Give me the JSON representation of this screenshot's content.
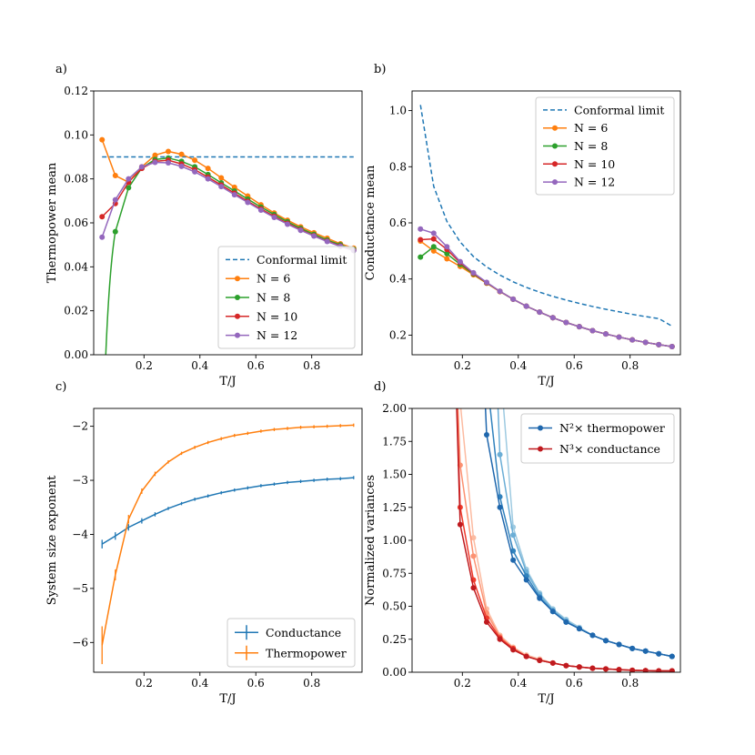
{
  "chart_data": [
    {
      "panel_label": "a)",
      "type": "line",
      "xlabel": "T/J",
      "ylabel": "Thermopower mean",
      "xlim": [
        0.02,
        0.98
      ],
      "ylim": [
        0.0,
        0.12
      ],
      "xticks": [
        0.2,
        0.4,
        0.6,
        0.8
      ],
      "xtick_labels": [
        "0.2",
        "0.4",
        "0.6",
        "0.8"
      ],
      "yticks": [
        0.0,
        0.02,
        0.04,
        0.06,
        0.08,
        0.1,
        0.12
      ],
      "ytick_labels": [
        "0.00",
        "0.02",
        "0.04",
        "0.06",
        "0.08",
        "0.10",
        "0.12"
      ],
      "legend": "lower-right",
      "series": [
        {
          "name": "Conformal limit",
          "color": "#1f77b4",
          "style": "dashed",
          "markers": false,
          "x": [
            0.05,
            0.95
          ],
          "y": [
            0.09,
            0.09
          ]
        },
        {
          "name": "N = 6",
          "color": "#ff7f0e",
          "style": "solid",
          "markers": true,
          "x": [
            0.05,
            0.0974,
            0.1447,
            0.1921,
            0.2395,
            0.2868,
            0.3342,
            0.3816,
            0.4289,
            0.4763,
            0.5237,
            0.5711,
            0.6184,
            0.6658,
            0.7132,
            0.7605,
            0.8079,
            0.8553,
            0.9026,
            0.95
          ],
          "y": [
            0.0978,
            0.0815,
            0.0785,
            0.0855,
            0.0908,
            0.0925,
            0.0912,
            0.0885,
            0.0848,
            0.0805,
            0.0762,
            0.0722,
            0.0682,
            0.0645,
            0.0612,
            0.0582,
            0.0555,
            0.053,
            0.0505,
            0.0485
          ]
        },
        {
          "name": "N = 8",
          "color": "#2ca02c",
          "style": "solid",
          "markers": true,
          "x": [
            0.0974,
            0.1447,
            0.1921,
            0.2395,
            0.2868,
            0.3342,
            0.3816,
            0.4289,
            0.4763,
            0.5237,
            0.5711,
            0.6184,
            0.6658,
            0.7132,
            0.7605,
            0.8079,
            0.8553,
            0.9026,
            0.95
          ],
          "y": [
            0.056,
            0.076,
            0.085,
            0.0888,
            0.0895,
            0.088,
            0.0855,
            0.082,
            0.0782,
            0.0745,
            0.0708,
            0.0672,
            0.0638,
            0.0605,
            0.0575,
            0.0548,
            0.0522,
            0.05,
            0.048
          ],
          "curve_start": {
            "x": 0.0632,
            "y": 0.0
          }
        },
        {
          "name": "N = 10",
          "color": "#d62728",
          "style": "solid",
          "markers": true,
          "x": [
            0.05,
            0.0974,
            0.1447,
            0.1921,
            0.2395,
            0.2868,
            0.3342,
            0.3816,
            0.4289,
            0.4763,
            0.5237,
            0.5711,
            0.6184,
            0.6658,
            0.7132,
            0.7605,
            0.8079,
            0.8553,
            0.9026,
            0.95
          ],
          "y": [
            0.0628,
            0.0688,
            0.0785,
            0.0848,
            0.088,
            0.0885,
            0.0868,
            0.0842,
            0.0808,
            0.0772,
            0.0735,
            0.0698,
            0.0663,
            0.063,
            0.0598,
            0.0569,
            0.0542,
            0.0517,
            0.0495,
            0.0476
          ]
        },
        {
          "name": "N = 12",
          "color": "#9467bd",
          "style": "solid",
          "markers": true,
          "x": [
            0.05,
            0.0974,
            0.1447,
            0.1921,
            0.2395,
            0.2868,
            0.3342,
            0.3816,
            0.4289,
            0.4763,
            0.5237,
            0.5711,
            0.6184,
            0.6658,
            0.7132,
            0.7605,
            0.8079,
            0.8553,
            0.9026,
            0.95
          ],
          "y": [
            0.0535,
            0.0705,
            0.08,
            0.0855,
            0.0875,
            0.0873,
            0.0857,
            0.0832,
            0.08,
            0.0765,
            0.0728,
            0.0693,
            0.0658,
            0.0625,
            0.0594,
            0.0566,
            0.054,
            0.0515,
            0.0493,
            0.0474
          ]
        }
      ]
    },
    {
      "panel_label": "b)",
      "type": "line",
      "xlabel": "T/J",
      "ylabel": "Conductance mean",
      "xlim": [
        0.02,
        0.98
      ],
      "ylim": [
        0.13,
        1.07
      ],
      "xticks": [
        0.2,
        0.4,
        0.6,
        0.8
      ],
      "xtick_labels": [
        "0.2",
        "0.4",
        "0.6",
        "0.8"
      ],
      "yticks": [
        0.2,
        0.4,
        0.6,
        0.8,
        1.0
      ],
      "ytick_labels": [
        "0.2",
        "0.4",
        "0.6",
        "0.8",
        "1.0"
      ],
      "legend": "top-right",
      "series": [
        {
          "name": "Conformal limit",
          "color": "#1f77b4",
          "style": "dashed",
          "markers": false,
          "x": [
            0.05,
            0.0974,
            0.1447,
            0.1921,
            0.2395,
            0.2868,
            0.3342,
            0.3816,
            0.4289,
            0.4763,
            0.5237,
            0.5711,
            0.6184,
            0.6658,
            0.7132,
            0.7605,
            0.8079,
            0.8553,
            0.9026,
            0.95
          ],
          "y": [
            1.02,
            0.73,
            0.605,
            0.532,
            0.48,
            0.443,
            0.414,
            0.39,
            0.37,
            0.353,
            0.338,
            0.325,
            0.313,
            0.302,
            0.292,
            0.283,
            0.274,
            0.266,
            0.259,
            0.232
          ]
        },
        {
          "name": "N = 6",
          "color": "#ff7f0e",
          "style": "solid",
          "markers": true,
          "x": [
            0.05,
            0.0974,
            0.1447,
            0.1921,
            0.2395,
            0.2868,
            0.3342,
            0.3816,
            0.4289,
            0.4763,
            0.5237,
            0.5711,
            0.6184,
            0.6658,
            0.7132,
            0.7605,
            0.8079,
            0.8553,
            0.9026,
            0.95
          ],
          "y": [
            0.535,
            0.5,
            0.472,
            0.445,
            0.415,
            0.385,
            0.355,
            0.328,
            0.303,
            0.282,
            0.262,
            0.245,
            0.23,
            0.216,
            0.204,
            0.193,
            0.183,
            0.174,
            0.166,
            0.159
          ]
        },
        {
          "name": "N = 8",
          "color": "#2ca02c",
          "style": "solid",
          "markers": true,
          "x": [
            0.05,
            0.0974,
            0.1447,
            0.1921,
            0.2395,
            0.2868,
            0.3342,
            0.3816,
            0.4289,
            0.4763,
            0.5237,
            0.5711,
            0.6184,
            0.6658,
            0.7132,
            0.7605,
            0.8079,
            0.8553,
            0.9026,
            0.95
          ],
          "y": [
            0.478,
            0.515,
            0.49,
            0.452,
            0.418,
            0.386,
            0.356,
            0.328,
            0.303,
            0.282,
            0.262,
            0.245,
            0.23,
            0.216,
            0.204,
            0.193,
            0.183,
            0.174,
            0.166,
            0.159
          ]
        },
        {
          "name": "N = 10",
          "color": "#d62728",
          "style": "solid",
          "markers": true,
          "x": [
            0.05,
            0.0974,
            0.1447,
            0.1921,
            0.2395,
            0.2868,
            0.3342,
            0.3816,
            0.4289,
            0.4763,
            0.5237,
            0.5711,
            0.6184,
            0.6658,
            0.7132,
            0.7605,
            0.8079,
            0.8553,
            0.9026,
            0.95
          ],
          "y": [
            0.54,
            0.543,
            0.505,
            0.458,
            0.42,
            0.387,
            0.356,
            0.328,
            0.303,
            0.282,
            0.262,
            0.245,
            0.23,
            0.216,
            0.204,
            0.193,
            0.183,
            0.174,
            0.166,
            0.159
          ]
        },
        {
          "name": "N = 12",
          "color": "#9467bd",
          "style": "solid",
          "markers": true,
          "x": [
            0.05,
            0.0974,
            0.1447,
            0.1921,
            0.2395,
            0.2868,
            0.3342,
            0.3816,
            0.4289,
            0.4763,
            0.5237,
            0.5711,
            0.6184,
            0.6658,
            0.7132,
            0.7605,
            0.8079,
            0.8553,
            0.9026,
            0.95
          ],
          "y": [
            0.578,
            0.563,
            0.515,
            0.462,
            0.422,
            0.388,
            0.356,
            0.328,
            0.303,
            0.282,
            0.262,
            0.245,
            0.23,
            0.216,
            0.204,
            0.193,
            0.183,
            0.174,
            0.166,
            0.159
          ]
        }
      ]
    },
    {
      "panel_label": "c)",
      "type": "line",
      "xlabel": "T/J",
      "ylabel": "System size exponent",
      "xlim": [
        0.02,
        0.98
      ],
      "ylim": [
        -6.55,
        -1.67
      ],
      "xticks": [
        0.2,
        0.4,
        0.6,
        0.8
      ],
      "xtick_labels": [
        "0.2",
        "0.4",
        "0.6",
        "0.8"
      ],
      "yticks": [
        -6,
        -5,
        -4,
        -3,
        -2
      ],
      "ytick_labels": [
        "−6",
        "−5",
        "−4",
        "−3",
        "−2"
      ],
      "legend": "lower-right",
      "series": [
        {
          "name": "Conductance",
          "color": "#1f77b4",
          "style": "errorbar",
          "x": [
            0.05,
            0.0974,
            0.1447,
            0.1921,
            0.2395,
            0.2868,
            0.3342,
            0.3816,
            0.4289,
            0.4763,
            0.5237,
            0.5711,
            0.6184,
            0.6658,
            0.7132,
            0.7605,
            0.8079,
            0.8553,
            0.9026,
            0.95
          ],
          "y": [
            -4.18,
            -4.03,
            -3.87,
            -3.75,
            -3.63,
            -3.52,
            -3.43,
            -3.35,
            -3.29,
            -3.23,
            -3.18,
            -3.14,
            -3.1,
            -3.07,
            -3.04,
            -3.02,
            -3.0,
            -2.98,
            -2.97,
            -2.95
          ],
          "yerr": [
            0.08,
            0.07,
            0.06,
            0.05,
            0.04,
            0.03,
            0.03,
            0.03,
            0.03,
            0.03,
            0.03,
            0.03,
            0.03,
            0.03,
            0.03,
            0.03,
            0.03,
            0.03,
            0.03,
            0.03
          ]
        },
        {
          "name": "Thermopower",
          "color": "#ff7f0e",
          "style": "errorbar",
          "x": [
            0.05,
            0.0974,
            0.1447,
            0.1921,
            0.2395,
            0.2868,
            0.3342,
            0.3816,
            0.4289,
            0.4763,
            0.5237,
            0.5711,
            0.6184,
            0.6658,
            0.7132,
            0.7605,
            0.8079,
            0.8553,
            0.9026,
            0.95
          ],
          "y": [
            -6.05,
            -4.75,
            -3.72,
            -3.2,
            -2.88,
            -2.66,
            -2.5,
            -2.39,
            -2.3,
            -2.23,
            -2.17,
            -2.13,
            -2.09,
            -2.06,
            -2.04,
            -2.02,
            -2.01,
            -2.0,
            -1.99,
            -1.98
          ],
          "yerr": [
            0.35,
            0.1,
            0.08,
            0.05,
            0.04,
            0.03,
            0.03,
            0.03,
            0.03,
            0.03,
            0.03,
            0.03,
            0.03,
            0.03,
            0.03,
            0.03,
            0.03,
            0.03,
            0.03,
            0.03
          ]
        }
      ]
    },
    {
      "panel_label": "d)",
      "type": "line",
      "xlabel": "T/J",
      "ylabel": "Normalized variances",
      "xlim": [
        0.02,
        0.98
      ],
      "ylim": [
        0.0,
        2.0
      ],
      "xticks": [
        0.2,
        0.4,
        0.6,
        0.8
      ],
      "xtick_labels": [
        "0.2",
        "0.4",
        "0.6",
        "0.8"
      ],
      "yticks": [
        0.0,
        0.25,
        0.5,
        0.75,
        1.0,
        1.25,
        1.5,
        1.75,
        2.0
      ],
      "ytick_labels": [
        "0.00",
        "0.25",
        "0.50",
        "0.75",
        "1.00",
        "1.25",
        "1.50",
        "1.75",
        "2.00"
      ],
      "legend": "top-right",
      "legend_entries": [
        {
          "label": "N²× thermopower",
          "color": "#1f67ad"
        },
        {
          "label": "N³× conductance",
          "color": "#bf1a1f"
        }
      ],
      "x": [
        0.05,
        0.0974,
        0.1447,
        0.1921,
        0.2395,
        0.2868,
        0.3342,
        0.3816,
        0.4289,
        0.4763,
        0.5237,
        0.5711,
        0.6184,
        0.6658,
        0.7132,
        0.7605,
        0.8079,
        0.8553,
        0.9026,
        0.95
      ],
      "series": [
        {
          "name": "thermopower N=6",
          "color": "#9ecae1",
          "y": [
            null,
            null,
            null,
            null,
            null,
            null,
            2.35,
            1.1,
            0.78,
            0.6,
            0.48,
            0.4,
            0.34,
            0.28,
            0.24,
            0.21,
            0.18,
            0.16,
            0.14,
            0.12
          ]
        },
        {
          "name": "thermopower N=8",
          "color": "#6baed6",
          "y": [
            null,
            null,
            null,
            null,
            null,
            null,
            1.65,
            1.04,
            0.76,
            0.59,
            0.47,
            0.39,
            0.33,
            0.28,
            0.24,
            0.21,
            0.18,
            0.16,
            0.14,
            0.12
          ]
        },
        {
          "name": "thermopower N=10",
          "color": "#3182bd",
          "y": [
            null,
            null,
            null,
            null,
            null,
            2.25,
            1.33,
            0.92,
            0.73,
            0.57,
            0.46,
            0.38,
            0.33,
            0.28,
            0.24,
            0.21,
            0.18,
            0.16,
            0.14,
            0.12
          ]
        },
        {
          "name": "thermopower N=12",
          "color": "#1f67ad",
          "y": [
            null,
            null,
            null,
            null,
            null,
            1.8,
            1.25,
            0.85,
            0.7,
            0.56,
            0.46,
            0.38,
            0.33,
            0.28,
            0.24,
            0.21,
            0.18,
            0.16,
            0.14,
            0.12
          ]
        },
        {
          "name": "conductance N=6",
          "color": "#fcbba1",
          "y": [
            null,
            null,
            null,
            2.05,
            1.02,
            0.48,
            0.28,
            0.19,
            0.13,
            0.1,
            0.07,
            0.05,
            0.04,
            0.03,
            0.025,
            0.02,
            0.015,
            0.012,
            0.01,
            0.01
          ]
        },
        {
          "name": "conductance N=8",
          "color": "#fc9272",
          "y": [
            null,
            null,
            null,
            1.57,
            0.88,
            0.45,
            0.27,
            0.18,
            0.12,
            0.09,
            0.07,
            0.05,
            0.04,
            0.03,
            0.025,
            0.02,
            0.015,
            0.012,
            0.01,
            0.01
          ]
        },
        {
          "name": "conductance N=10",
          "color": "#ef3b2c",
          "y": [
            null,
            null,
            null,
            1.25,
            0.7,
            0.41,
            0.26,
            0.18,
            0.12,
            0.09,
            0.07,
            0.05,
            0.04,
            0.03,
            0.025,
            0.02,
            0.015,
            0.012,
            0.01,
            0.01
          ]
        },
        {
          "name": "conductance N=12",
          "color": "#bf1a1f",
          "y": [
            null,
            null,
            null,
            1.12,
            0.64,
            0.38,
            0.25,
            0.17,
            0.12,
            0.09,
            0.07,
            0.05,
            0.04,
            0.03,
            0.025,
            0.02,
            0.015,
            0.012,
            0.01,
            0.01
          ]
        }
      ]
    }
  ]
}
